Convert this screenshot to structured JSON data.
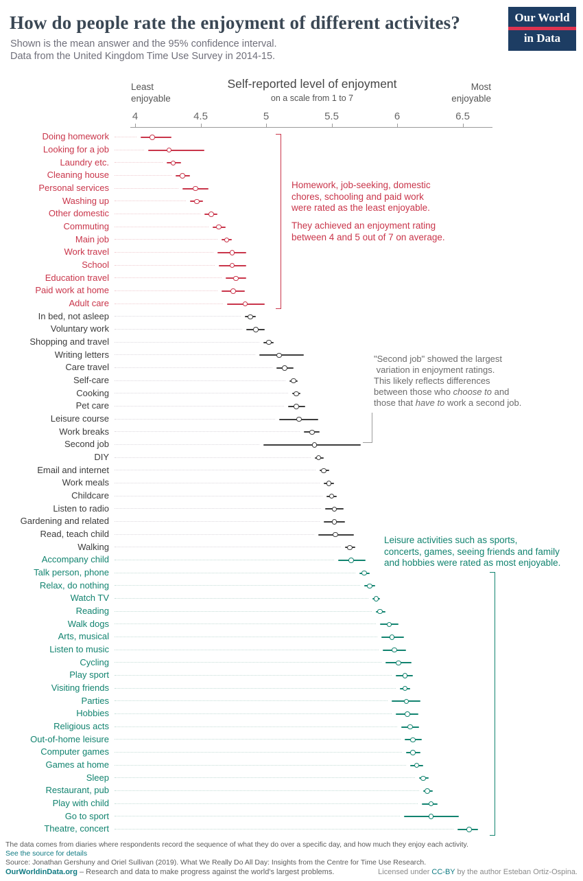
{
  "header": {
    "title": "How do people rate the enjoyment of different activites?",
    "subtitle1": "Shown is the mean answer and the 95% confidence interval.",
    "subtitle2": "Data from the United Kingdom Time Use Survey in 2014-15.",
    "logo_line1": "Our World",
    "logo_line2": "in Data"
  },
  "axis": {
    "title": "Self-reported level of enjoyment",
    "subtitle": "on a scale from 1 to 7",
    "left_label": "Least\nenjoyable",
    "right_label": "Most\nenjoyable",
    "tick_labels": [
      "4",
      "4.5",
      "5",
      "5.5",
      "6",
      "6.5"
    ]
  },
  "colors": {
    "low": "#C9354A",
    "mid": "#3B3B3B",
    "high": "#11836F",
    "low_light": "#EFC9CE",
    "mid_light": "#DBD7DD",
    "high_light": "#C2DCD6",
    "bracket_mid": "#9B9B9B",
    "axis": "#999999",
    "logo_bg": "#1D3D63",
    "logo_stripe": "#DE3350",
    "link": "#0F7A82"
  },
  "chart_data": {
    "type": "scatter",
    "variant": "dot plot of means with 95% confidence interval bars",
    "title": "Self-reported level of enjoyment",
    "subtitle": "on a scale from 1 to 7",
    "xlim": [
      3.95,
      6.75
    ],
    "x_ticks": [
      4,
      4.5,
      5,
      5.5,
      6,
      6.5
    ],
    "groups": {
      "low": "least enjoyable (red)",
      "mid": "middle (black)",
      "high": "most enjoyable (teal)"
    },
    "series": [
      {
        "label": "Doing homework",
        "group": "low",
        "value": 4.13,
        "lo": 4.04,
        "hi": 4.28
      },
      {
        "label": "Looking for a job",
        "group": "low",
        "value": 4.26,
        "lo": 4.1,
        "hi": 4.53
      },
      {
        "label": "Laundry etc.",
        "group": "low",
        "value": 4.29,
        "lo": 4.24,
        "hi": 4.35
      },
      {
        "label": "Cleaning house",
        "group": "low",
        "value": 4.36,
        "lo": 4.31,
        "hi": 4.42
      },
      {
        "label": "Personal services",
        "group": "low",
        "value": 4.46,
        "lo": 4.36,
        "hi": 4.56
      },
      {
        "label": "Washing up",
        "group": "low",
        "value": 4.47,
        "lo": 4.42,
        "hi": 4.52
      },
      {
        "label": "Other domestic",
        "group": "low",
        "value": 4.58,
        "lo": 4.53,
        "hi": 4.63
      },
      {
        "label": "Commuting",
        "group": "low",
        "value": 4.64,
        "lo": 4.59,
        "hi": 4.69
      },
      {
        "label": "Main job",
        "group": "low",
        "value": 4.7,
        "lo": 4.66,
        "hi": 4.74
      },
      {
        "label": "Work travel",
        "group": "low",
        "value": 4.74,
        "lo": 4.63,
        "hi": 4.85
      },
      {
        "label": "School",
        "group": "low",
        "value": 4.74,
        "lo": 4.64,
        "hi": 4.85
      },
      {
        "label": "Education travel",
        "group": "low",
        "value": 4.77,
        "lo": 4.69,
        "hi": 4.85
      },
      {
        "label": "Paid work at home",
        "group": "low",
        "value": 4.75,
        "lo": 4.66,
        "hi": 4.84
      },
      {
        "label": "Adult care",
        "group": "low",
        "value": 4.84,
        "lo": 4.7,
        "hi": 4.99
      },
      {
        "label": "In bed, not asleep",
        "group": "mid",
        "value": 4.88,
        "lo": 4.84,
        "hi": 4.92
      },
      {
        "label": "Voluntary work",
        "group": "mid",
        "value": 4.92,
        "lo": 4.85,
        "hi": 4.99
      },
      {
        "label": "Shopping and travel",
        "group": "mid",
        "value": 5.02,
        "lo": 4.98,
        "hi": 5.06
      },
      {
        "label": "Writing letters",
        "group": "mid",
        "value": 5.1,
        "lo": 4.95,
        "hi": 5.29
      },
      {
        "label": "Care travel",
        "group": "mid",
        "value": 5.14,
        "lo": 5.08,
        "hi": 5.21
      },
      {
        "label": "Self-care",
        "group": "mid",
        "value": 5.21,
        "lo": 5.18,
        "hi": 5.24
      },
      {
        "label": "Cooking",
        "group": "mid",
        "value": 5.23,
        "lo": 5.2,
        "hi": 5.26
      },
      {
        "label": "Pet care",
        "group": "mid",
        "value": 5.23,
        "lo": 5.17,
        "hi": 5.3
      },
      {
        "label": "Leisure course",
        "group": "mid",
        "value": 5.25,
        "lo": 5.1,
        "hi": 5.4
      },
      {
        "label": "Work breaks",
        "group": "mid",
        "value": 5.35,
        "lo": 5.29,
        "hi": 5.41
      },
      {
        "label": "Second job",
        "group": "mid",
        "value": 5.37,
        "lo": 4.98,
        "hi": 5.72
      },
      {
        "label": "DIY",
        "group": "mid",
        "value": 5.4,
        "lo": 5.37,
        "hi": 5.44
      },
      {
        "label": "Email and internet",
        "group": "mid",
        "value": 5.44,
        "lo": 5.41,
        "hi": 5.48
      },
      {
        "label": "Work meals",
        "group": "mid",
        "value": 5.48,
        "lo": 5.44,
        "hi": 5.52
      },
      {
        "label": "Childcare",
        "group": "mid",
        "value": 5.5,
        "lo": 5.46,
        "hi": 5.54
      },
      {
        "label": "Listen to radio",
        "group": "mid",
        "value": 5.52,
        "lo": 5.45,
        "hi": 5.59
      },
      {
        "label": "Gardening and related",
        "group": "mid",
        "value": 5.52,
        "lo": 5.44,
        "hi": 5.6
      },
      {
        "label": "Read, teach child",
        "group": "mid",
        "value": 5.53,
        "lo": 5.4,
        "hi": 5.67
      },
      {
        "label": "Walking",
        "group": "mid",
        "value": 5.64,
        "lo": 5.6,
        "hi": 5.68
      },
      {
        "label": "Accompany child",
        "group": "high",
        "value": 5.65,
        "lo": 5.55,
        "hi": 5.76
      },
      {
        "label": "Talk person, phone",
        "group": "high",
        "value": 5.75,
        "lo": 5.71,
        "hi": 5.79
      },
      {
        "label": "Relax, do nothing",
        "group": "high",
        "value": 5.79,
        "lo": 5.75,
        "hi": 5.83
      },
      {
        "label": "Watch TV",
        "group": "high",
        "value": 5.84,
        "lo": 5.81,
        "hi": 5.87
      },
      {
        "label": "Reading",
        "group": "high",
        "value": 5.87,
        "lo": 5.84,
        "hi": 5.91
      },
      {
        "label": "Walk dogs",
        "group": "high",
        "value": 5.94,
        "lo": 5.87,
        "hi": 6.01
      },
      {
        "label": "Arts, musical",
        "group": "high",
        "value": 5.96,
        "lo": 5.88,
        "hi": 6.05
      },
      {
        "label": "Listen to music",
        "group": "high",
        "value": 5.98,
        "lo": 5.89,
        "hi": 6.07
      },
      {
        "label": "Cycling",
        "group": "high",
        "value": 6.01,
        "lo": 5.91,
        "hi": 6.11
      },
      {
        "label": "Play sport",
        "group": "high",
        "value": 6.06,
        "lo": 5.99,
        "hi": 6.12
      },
      {
        "label": "Visiting friends",
        "group": "high",
        "value": 6.06,
        "lo": 6.02,
        "hi": 6.1
      },
      {
        "label": "Parties",
        "group": "high",
        "value": 6.07,
        "lo": 5.96,
        "hi": 6.18
      },
      {
        "label": "Hobbies",
        "group": "high",
        "value": 6.08,
        "lo": 5.99,
        "hi": 6.16
      },
      {
        "label": "Religious acts",
        "group": "high",
        "value": 6.1,
        "lo": 6.03,
        "hi": 6.17
      },
      {
        "label": "Out-of-home leisure",
        "group": "high",
        "value": 6.12,
        "lo": 6.06,
        "hi": 6.19
      },
      {
        "label": "Computer games",
        "group": "high",
        "value": 6.12,
        "lo": 6.07,
        "hi": 6.18
      },
      {
        "label": "Games at home",
        "group": "high",
        "value": 6.15,
        "lo": 6.1,
        "hi": 6.2
      },
      {
        "label": "Sleep",
        "group": "high",
        "value": 6.2,
        "lo": 6.17,
        "hi": 6.24
      },
      {
        "label": "Restaurant, pub",
        "group": "high",
        "value": 6.23,
        "lo": 6.2,
        "hi": 6.27
      },
      {
        "label": "Play with child",
        "group": "high",
        "value": 6.26,
        "lo": 6.19,
        "hi": 6.31
      },
      {
        "label": "Go to sport",
        "group": "high",
        "value": 6.26,
        "lo": 6.05,
        "hi": 6.47
      },
      {
        "label": "Theatre, concert",
        "group": "high",
        "value": 6.55,
        "lo": 6.46,
        "hi": 6.62
      }
    ]
  },
  "annotations": {
    "low": {
      "p1": "Homework, job-seeking, domestic\nchores, schooling and paid work\nwere rated as the least enjoyable.",
      "p2": "They achieved an enjoyment rating\nbetween 4 and 5 out of 7 on average."
    },
    "mid": {
      "lines": [
        [
          {
            "t": "\"Second job\" showed the largest"
          }
        ],
        [
          {
            "t": " variation in enjoyment ratings."
          }
        ],
        [
          {
            "t": "This likely reflects differences"
          }
        ],
        [
          {
            "t": "between those who "
          },
          {
            "t": "choose to",
            "i": true
          },
          {
            "t": " and"
          }
        ],
        [
          {
            "t": "those that "
          },
          {
            "t": "have to",
            "i": true
          },
          {
            "t": " work a second job."
          }
        ]
      ]
    },
    "high": {
      "text": "Leisure activities such as sports,\nconcerts, games, seeing friends and family\nand hobbies were rated as most enjoyable."
    }
  },
  "footer": {
    "note": "The data comes from diaries where respondents record the sequence of what they do over a specific day, and how much they enjoy each activity.",
    "source_link": "See the source for details",
    "source": "Source: Jonathan Gershuny and Oriel Sullivan (2019). What We Really Do All Day: Insights from the Centre for Time Use Research.",
    "site": "OurWorldinData.org",
    "site_tagline": " – Research and data to make progress against the world's largest problems.",
    "license_prefix": "Licensed under ",
    "license_link": "CC-BY",
    "license_suffix": " by the author Esteban Ortiz-Ospina."
  }
}
